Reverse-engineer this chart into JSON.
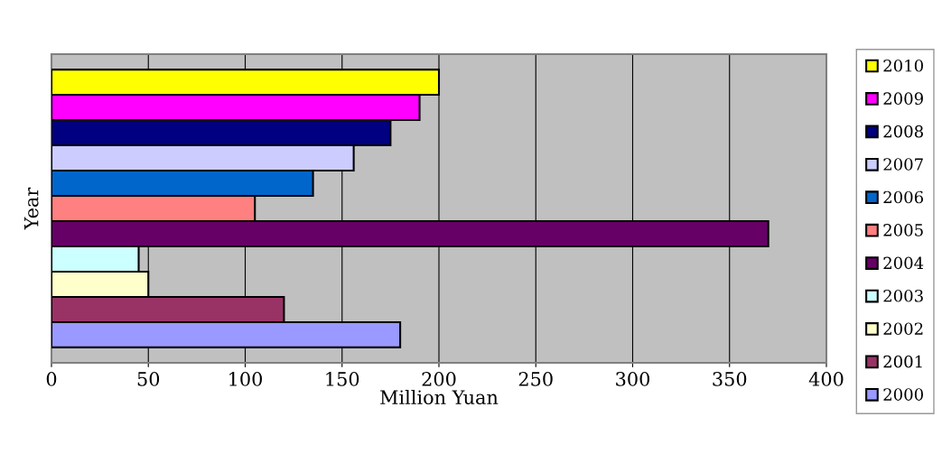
{
  "chart_data": {
    "type": "bar",
    "orientation": "horizontal",
    "xlabel": "Million Yuan",
    "ylabel": "Year",
    "categories": [
      null
    ],
    "series": [
      {
        "name": "2000",
        "color": "#9999ff",
        "values": [
          180
        ]
      },
      {
        "name": "2001",
        "color": "#993366",
        "values": [
          120
        ]
      },
      {
        "name": "2002",
        "color": "#ffffcc",
        "values": [
          50
        ]
      },
      {
        "name": "2003",
        "color": "#ccffff",
        "values": [
          45
        ]
      },
      {
        "name": "2004",
        "color": "#660066",
        "values": [
          370
        ]
      },
      {
        "name": "2005",
        "color": "#ff8080",
        "values": [
          105
        ]
      },
      {
        "name": "2006",
        "color": "#0066cc",
        "values": [
          135
        ]
      },
      {
        "name": "2007",
        "color": "#ccccff",
        "values": [
          156
        ]
      },
      {
        "name": "2008",
        "color": "#000080",
        "values": [
          175
        ]
      },
      {
        "name": "2009",
        "color": "#ff00ff",
        "values": [
          190
        ]
      },
      {
        "name": "2010",
        "color": "#ffff00",
        "values": [
          200
        ]
      }
    ],
    "xlim": [
      0,
      400
    ],
    "xticks": [
      0,
      50,
      100,
      150,
      200,
      250,
      300,
      350,
      400
    ],
    "grid": "x",
    "legend": "right"
  }
}
